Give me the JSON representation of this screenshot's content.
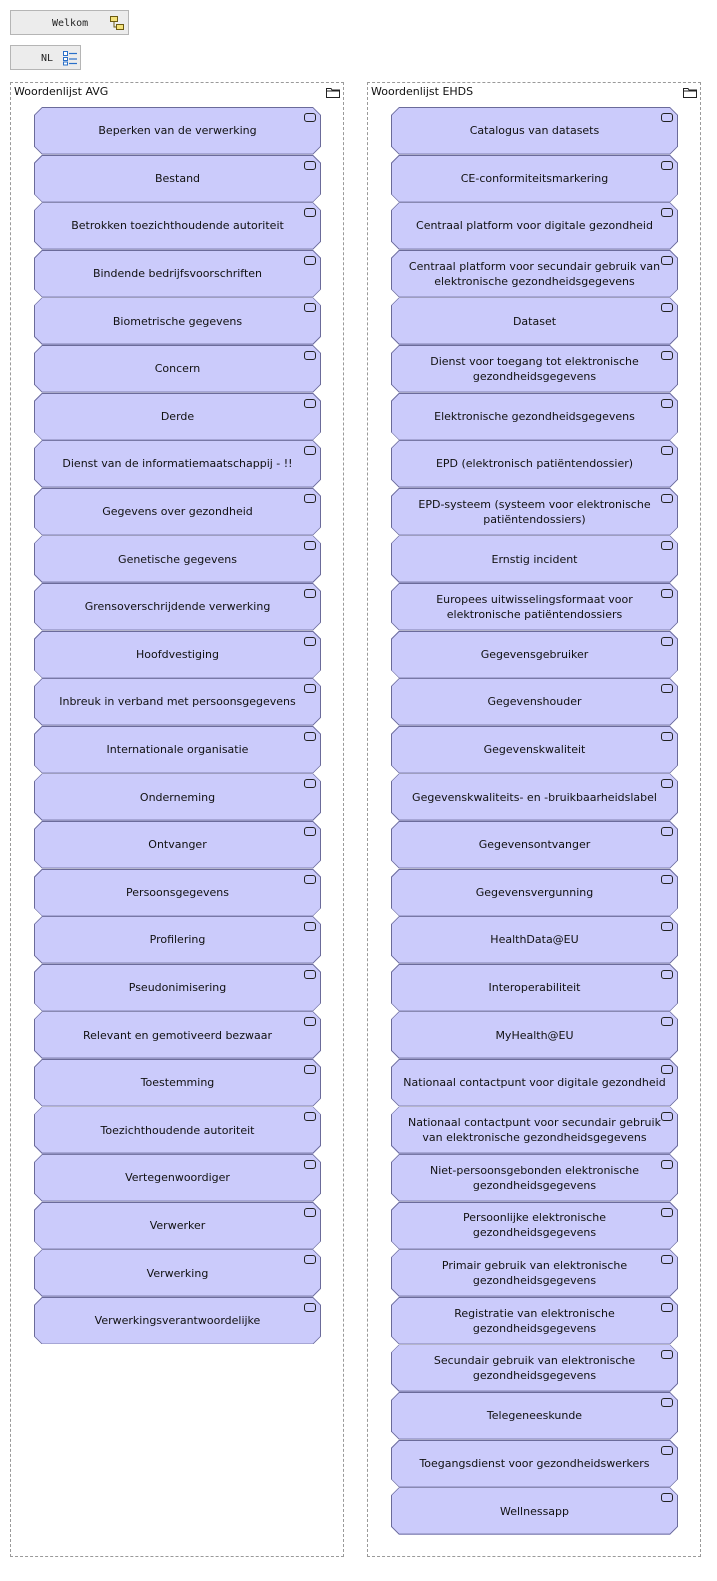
{
  "nav": {
    "welcome_label": "Welkom",
    "welcome_icon": "process-flow-icon",
    "language_label": "NL",
    "language_icon": "list-view-icon"
  },
  "groups": [
    {
      "title": "Woordenlijst AVG",
      "icon": "folder-icon",
      "items": [
        {
          "label": "Beperken van de verwerking"
        },
        {
          "label": "Bestand"
        },
        {
          "label": "Betrokken toezichthoudende autoriteit"
        },
        {
          "label": "Bindende bedrijfsvoorschriften"
        },
        {
          "label": "Biometrische gegevens"
        },
        {
          "label": "Concern"
        },
        {
          "label": "Derde"
        },
        {
          "label": "Dienst van de informatiemaatschappij - !!"
        },
        {
          "label": "Gegevens over gezondheid"
        },
        {
          "label": "Genetische gegevens"
        },
        {
          "label": "Grensoverschrijdende verwerking"
        },
        {
          "label": "Hoofdvestiging"
        },
        {
          "label": "Inbreuk in verband met persoonsgegevens"
        },
        {
          "label": "Internationale organisatie"
        },
        {
          "label": "Onderneming"
        },
        {
          "label": "Ontvanger"
        },
        {
          "label": "Persoonsgegevens"
        },
        {
          "label": "Profilering"
        },
        {
          "label": "Pseudonimisering"
        },
        {
          "label": "Relevant en gemotiveerd bezwaar"
        },
        {
          "label": "Toestemming"
        },
        {
          "label": "Toezichthoudende autoriteit"
        },
        {
          "label": "Vertegenwoordiger"
        },
        {
          "label": "Verwerker"
        },
        {
          "label": "Verwerking"
        },
        {
          "label": "Verwerkingsverantwoordelijke"
        }
      ]
    },
    {
      "title": "Woordenlijst EHDS",
      "icon": "folder-icon",
      "items": [
        {
          "label": "Catalogus van datasets"
        },
        {
          "label": "CE-conformiteitsmarkering"
        },
        {
          "label": "Centraal platform voor digitale gezondheid"
        },
        {
          "label": "Centraal platform voor secundair gebruik van elektronische gezondheidsgegevens"
        },
        {
          "label": "Dataset"
        },
        {
          "label": "Dienst voor toegang tot elektronische gezondheidsgegevens"
        },
        {
          "label": "Elektronische gezondheidsgegevens"
        },
        {
          "label": "EPD (elektronisch patiëntendossier)"
        },
        {
          "label": "EPD-systeem (systeem voor elektronische patiëntendossiers)"
        },
        {
          "label": "Ernstig incident"
        },
        {
          "label": "Europees uitwisselingsformaat voor elektronische patiëntendossiers"
        },
        {
          "label": "Gegevensgebruiker"
        },
        {
          "label": "Gegevenshouder"
        },
        {
          "label": "Gegevenskwaliteit"
        },
        {
          "label": "Gegevenskwaliteits- en -bruikbaarheidslabel"
        },
        {
          "label": "Gegevensontvanger"
        },
        {
          "label": "Gegevensvergunning"
        },
        {
          "label": "HealthData@EU"
        },
        {
          "label": "Interoperabiliteit"
        },
        {
          "label": "MyHealth@EU"
        },
        {
          "label": "Nationaal contactpunt voor digitale gezondheid"
        },
        {
          "label": "Nationaal contactpunt voor secundair gebruik van elektronische gezondheidsgegevens"
        },
        {
          "label": "Niet-persoonsgebonden elektronische gezondheidsgegevens"
        },
        {
          "label": "Persoonlijke elektronische gezondheidsgegevens"
        },
        {
          "label": "Primair gebruik van elektronische gezondheidsgegevens"
        },
        {
          "label": "Registratie van elektronische gezondheidsgegevens"
        },
        {
          "label": "Secundair gebruik van elektronische gezondheidsgegevens"
        },
        {
          "label": "Telegeneeskunde"
        },
        {
          "label": "Toegangsdienst voor gezondheidswerkers"
        },
        {
          "label": "Wellnessapp"
        }
      ]
    }
  ],
  "colors": {
    "item_fill": "#cbcbfb",
    "item_border": "#6b6b9a",
    "nav_fill": "#ececec"
  }
}
